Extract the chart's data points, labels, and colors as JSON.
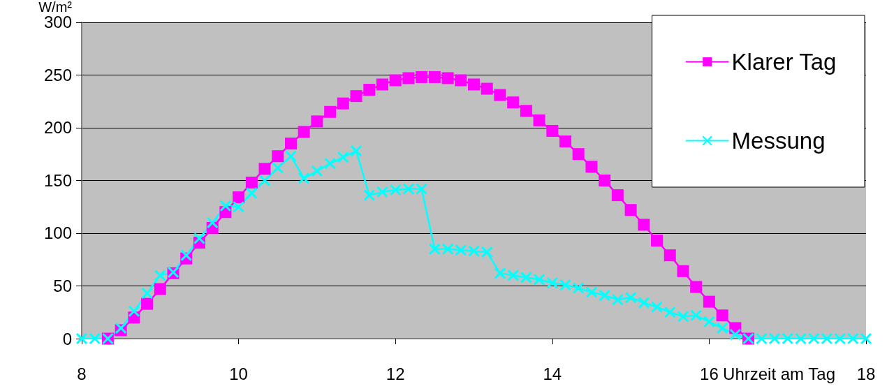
{
  "chart_data": {
    "type": "line",
    "xlabel": "Uhrzeit am Tag",
    "ylabel": "W/m²",
    "xlim": [
      8,
      18
    ],
    "xticks": [
      8,
      10,
      12,
      14,
      16,
      18
    ],
    "ylim": [
      0,
      300
    ],
    "yticks": [
      0,
      50,
      100,
      150,
      200,
      250,
      300
    ],
    "grid": "y",
    "legend": "top right",
    "line_style": "solid",
    "series": [
      {
        "name": "Klarer Tag",
        "color": "#ff00ff",
        "marker": "square",
        "x": [
          8.333,
          8.5,
          8.667,
          8.833,
          9,
          9.167,
          9.333,
          9.5,
          9.667,
          9.833,
          10,
          10.167,
          10.333,
          10.5,
          10.667,
          10.833,
          11,
          11.167,
          11.333,
          11.5,
          11.667,
          11.833,
          12,
          12.167,
          12.333,
          12.5,
          12.667,
          12.833,
          13,
          13.167,
          13.333,
          13.5,
          13.667,
          13.833,
          14,
          14.167,
          14.333,
          14.5,
          14.667,
          14.833,
          15,
          15.167,
          15.333,
          15.5,
          15.667,
          15.833,
          16,
          16.167,
          16.333,
          16.5
        ],
        "values": [
          0,
          8,
          20,
          33,
          47,
          62,
          76,
          91,
          105,
          120,
          134,
          148,
          161,
          173,
          185,
          196,
          206,
          215,
          223,
          230,
          236,
          241,
          245,
          247,
          248,
          248,
          247,
          245,
          241,
          237,
          231,
          224,
          216,
          207,
          197,
          187,
          175,
          163,
          150,
          136,
          122,
          108,
          93,
          79,
          64,
          49,
          35,
          22,
          10,
          0
        ]
      },
      {
        "name": "Messung",
        "color": "#00ffff",
        "marker": "cross",
        "x": [
          8,
          8.167,
          8.333,
          8.5,
          8.667,
          8.833,
          9,
          9.167,
          9.333,
          9.5,
          9.667,
          9.833,
          10,
          10.167,
          10.333,
          10.5,
          10.667,
          10.833,
          11,
          11.167,
          11.333,
          11.5,
          11.667,
          11.833,
          12,
          12.167,
          12.333,
          12.5,
          12.667,
          12.833,
          13,
          13.167,
          13.333,
          13.5,
          13.667,
          13.833,
          14,
          14.167,
          14.333,
          14.5,
          14.667,
          14.833,
          15,
          15.167,
          15.333,
          15.5,
          15.667,
          15.833,
          16,
          16.167,
          16.333,
          16.5,
          16.667,
          16.833,
          17,
          17.167,
          17.333,
          17.5,
          17.667,
          17.833,
          18
        ],
        "values": [
          0,
          0,
          0,
          10,
          26,
          43,
          60,
          63,
          79,
          95,
          110,
          126,
          125,
          138,
          150,
          162,
          173,
          152,
          159,
          166,
          172,
          178,
          136,
          139,
          141,
          142,
          142,
          85,
          85,
          84,
          83,
          82,
          62,
          60,
          58,
          56,
          53,
          51,
          48,
          44,
          41,
          37,
          39,
          34,
          30,
          25,
          21,
          22,
          16,
          10,
          4,
          0,
          0,
          0,
          0,
          0,
          0,
          0,
          0,
          0,
          0
        ]
      }
    ]
  }
}
